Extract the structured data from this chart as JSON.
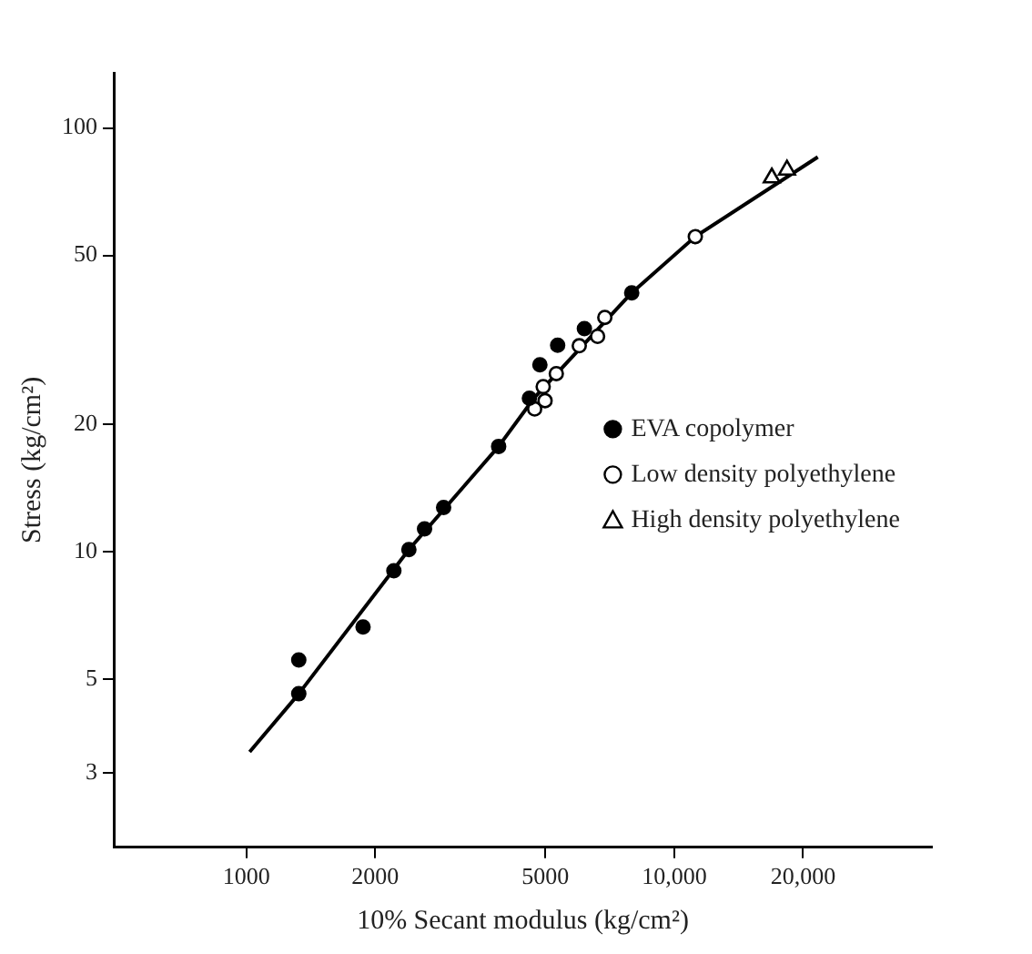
{
  "chart_data": {
    "type": "scatter",
    "xlabel": "10% Secant modulus (kg/cm²)",
    "ylabel": "Stress (kg/cm²)",
    "log": "xy",
    "grid": false,
    "legend": "right",
    "xlim": [
      490,
      40000
    ],
    "xticks": [
      1000,
      2000,
      5000,
      {
        "value": 10000,
        "label": "10,000"
      },
      {
        "value": 20000,
        "label": "20,000"
      }
    ],
    "ylim": [
      2,
      135
    ],
    "yticks": [
      3,
      5,
      10,
      20,
      50,
      100
    ],
    "series": [
      {
        "name": "EVA copolymer",
        "color": "#000000",
        "marker": "circle",
        "x": [
          1326,
          1326,
          1874,
          2212,
          2398,
          2609,
          2891,
          3887,
          4587,
          4853,
          5340,
          6166,
          7954
        ],
        "values": [
          5.54,
          4.61,
          6.63,
          9.0,
          10.1,
          11.3,
          12.7,
          17.7,
          23.0,
          27.6,
          30.7,
          33.6,
          40.8
        ]
      },
      {
        "name": "Low density polyethylene",
        "color": "#ffffff",
        "marker": "circle",
        "x": [
          4718,
          4990,
          4940,
          5301,
          5998,
          6620,
          6882,
          11200
        ],
        "values": [
          21.7,
          22.7,
          24.5,
          26.3,
          30.6,
          32.2,
          35.7,
          55.4
        ]
      },
      {
        "name": "High density polyethylene",
        "color": "#ffffff",
        "marker": "triangle",
        "x": [
          16900,
          18340
        ],
        "values": [
          76.3,
          79.6
        ]
      },
      {
        "type": "line",
        "color": "#000000",
        "marker": "none",
        "x": [
          1018,
          1326,
          2398,
          3887,
          4700,
          7954,
          11200,
          21650
        ],
        "values": [
          3.36,
          4.61,
          10.1,
          17.7,
          23,
          40.8,
          55.4,
          85.4
        ]
      }
    ]
  }
}
